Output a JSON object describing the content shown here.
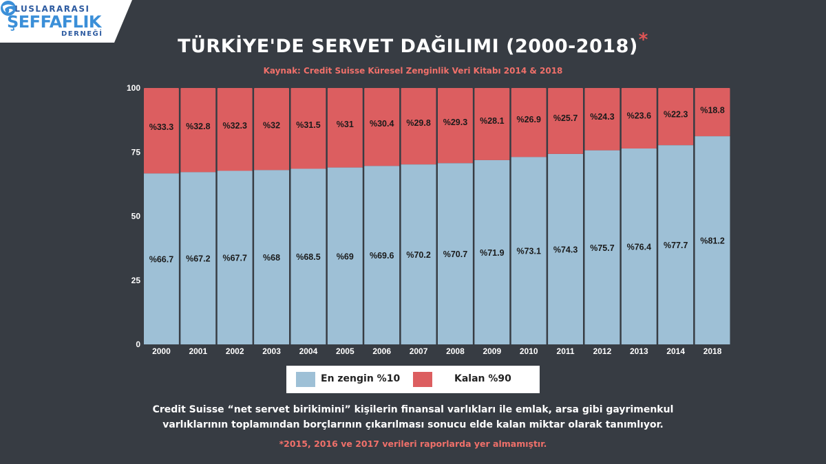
{
  "logo": {
    "line1": "ULUSLARARASI",
    "line2": "ŞEFFAFLIK",
    "line3": "DERNEĞİ"
  },
  "header": {
    "title": "TÜRKİYE'DE SERVET DAĞILIMI (2000-2018)",
    "title_star": "*",
    "source": "Kaynak: Credit Suisse Küresel Zenginlik Veri Kitabı 2014 & 2018"
  },
  "legend": {
    "top10": "En zengin %10",
    "rest90": "Kalan %90"
  },
  "note": {
    "line1": "Credit Suisse “net servet birikimini” kişilerin  finansal varlıkları ile emlak, arsa gibi gayrimenkul",
    "line2": "varlıklarının toplamından borçlarının çıkarılması sonucu elde kalan miktar olarak tanımlıyor."
  },
  "footnote": "*2015, 2016 ve 2017 verileri raporlarda yer almamıştır.",
  "colors": {
    "background": "#373c43",
    "top10": "#9ec0d6",
    "rest90": "#dc5e60",
    "accent_text": "#f0706a"
  },
  "chart_data": {
    "type": "bar",
    "stacked": true,
    "categories": [
      "2000",
      "2001",
      "2002",
      "2003",
      "2004",
      "2005",
      "2006",
      "2007",
      "2008",
      "2009",
      "2010",
      "2011",
      "2012",
      "2013",
      "2014",
      "2018"
    ],
    "series": [
      {
        "name": "En zengin %10",
        "values": [
          66.7,
          67.2,
          67.7,
          68,
          68.5,
          69,
          69.6,
          70.2,
          70.7,
          71.9,
          73.1,
          74.3,
          75.7,
          76.4,
          77.7,
          81.2
        ],
        "labels": [
          "%66.7",
          "%67.2",
          "%67.7",
          "%68",
          "%68.5",
          "%69",
          "%69.6",
          "%70.2",
          "%70.7",
          "%71.9",
          "%73.1",
          "%74.3",
          "%75.7",
          "%76.4",
          "%77.7",
          "%81.2"
        ]
      },
      {
        "name": "Kalan %90",
        "values": [
          33.3,
          32.8,
          32.3,
          32,
          31.5,
          31,
          30.4,
          29.8,
          29.3,
          28.1,
          26.9,
          25.7,
          24.3,
          23.6,
          22.3,
          18.8
        ],
        "labels": [
          "%33.3",
          "%32.8",
          "%32.3",
          "%32",
          "%31.5",
          "%31",
          "%30.4",
          "%29.8",
          "%29.3",
          "%28.1",
          "%26.9",
          "%25.7",
          "%24.3",
          "%23.6",
          "%22.3",
          "%18.8"
        ]
      }
    ],
    "ylim": [
      0,
      100
    ],
    "yticks": [
      "0",
      "25",
      "50",
      "75",
      "100"
    ],
    "ytick_values": [
      0,
      25,
      50,
      75,
      100
    ],
    "legend": "bottom"
  }
}
